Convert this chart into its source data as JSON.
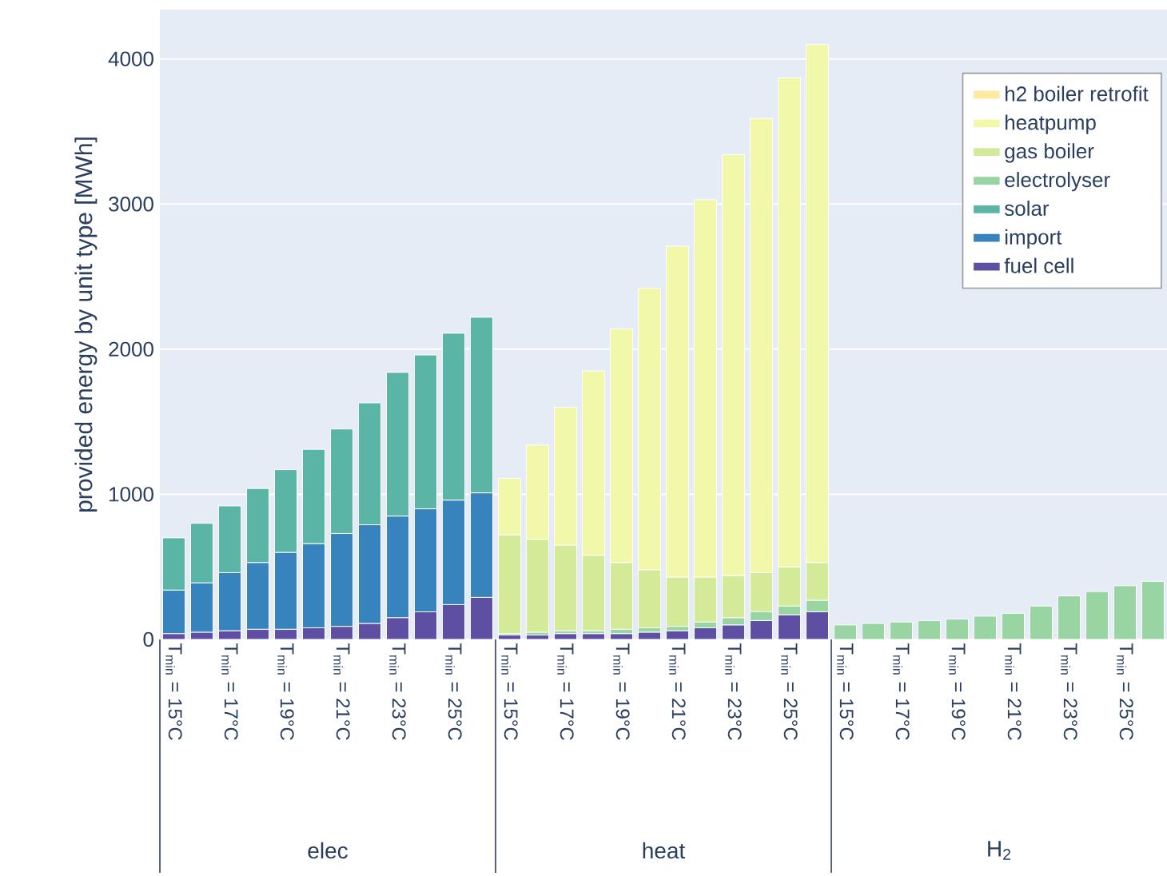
{
  "chart_data": {
    "type": "bar",
    "stacked": true,
    "ylabel": "provided energy by unit type [MWh]",
    "categories": [
      "T$_{min}$ = 15°C",
      null,
      "T$_{min}$ = 17°C",
      null,
      "T$_{min}$ = 19°C",
      null,
      "T$_{min}$ = 21°C",
      null,
      "T$_{min}$ = 23°C",
      null,
      "T$_{min}$ = 25°C",
      null,
      "T$_{min}$ = 15°C",
      null,
      "T$_{min}$ = 17°C",
      null,
      "T$_{min}$ = 19°C",
      null,
      "T$_{min}$ = 21°C",
      null,
      "T$_{min}$ = 23°C",
      null,
      "T$_{min}$ = 25°C",
      null,
      "T$_{min}$ = 15°C",
      null,
      "T$_{min}$ = 17°C",
      null,
      "T$_{min}$ = 19°C",
      null,
      "T$_{min}$ = 21°C",
      null,
      "T$_{min}$ = 23°C",
      null,
      "T$_{min}$ = 25°C",
      null
    ],
    "series": [
      {
        "name": "fuel cell",
        "color": "#5e4fa2",
        "values": [
          40,
          50,
          60,
          70,
          70,
          80,
          90,
          110,
          150,
          190,
          240,
          290,
          30,
          30,
          40,
          40,
          40,
          50,
          60,
          80,
          100,
          130,
          170,
          190,
          null,
          null,
          null,
          null,
          null,
          null,
          null,
          null,
          null,
          null,
          null,
          null
        ]
      },
      {
        "name": "import",
        "color": "#3783be",
        "values": [
          300,
          340,
          400,
          460,
          530,
          580,
          640,
          680,
          700,
          710,
          720,
          720,
          null,
          null,
          null,
          null,
          null,
          null,
          null,
          null,
          null,
          null,
          null,
          null,
          null,
          null,
          null,
          null,
          null,
          null,
          null,
          null,
          null,
          null,
          null,
          null
        ]
      },
      {
        "name": "solar",
        "color": "#5bb5a7",
        "values": [
          360,
          410,
          460,
          510,
          570,
          650,
          720,
          840,
          990,
          1060,
          1150,
          1210,
          null,
          null,
          null,
          null,
          null,
          null,
          null,
          null,
          null,
          null,
          null,
          null,
          null,
          null,
          null,
          null,
          null,
          null,
          null,
          null,
          null,
          null,
          null,
          null
        ]
      },
      {
        "name": "electrolyser",
        "color": "#99d5a2",
        "values": [
          null,
          null,
          null,
          null,
          null,
          null,
          null,
          null,
          null,
          null,
          null,
          null,
          10,
          20,
          20,
          20,
          30,
          30,
          30,
          40,
          50,
          60,
          60,
          80,
          100,
          110,
          120,
          130,
          140,
          160,
          180,
          230,
          300,
          330,
          370,
          400
        ]
      },
      {
        "name": "gas boiler",
        "color": "#d3eb98",
        "values": [
          null,
          null,
          null,
          null,
          null,
          null,
          null,
          null,
          null,
          null,
          null,
          null,
          680,
          640,
          590,
          520,
          460,
          400,
          340,
          310,
          290,
          270,
          270,
          260,
          null,
          null,
          null,
          null,
          null,
          null,
          null,
          null,
          null,
          null,
          null,
          null
        ]
      },
      {
        "name": "heatpump",
        "color": "#f2f8aa",
        "values": [
          null,
          null,
          null,
          null,
          null,
          null,
          null,
          null,
          null,
          null,
          null,
          null,
          390,
          650,
          950,
          1270,
          1610,
          1940,
          2280,
          2600,
          2900,
          3130,
          3370,
          3570,
          null,
          null,
          null,
          null,
          null,
          null,
          null,
          null,
          null,
          null,
          null,
          null
        ]
      },
      {
        "name": "h2 boiler retrofit",
        "color": "#fde9a2",
        "values": [
          null,
          null,
          null,
          null,
          null,
          null,
          null,
          null,
          null,
          null,
          null,
          null,
          null,
          null,
          null,
          null,
          null,
          null,
          null,
          null,
          null,
          null,
          null,
          null,
          null,
          null,
          null,
          null,
          null,
          null,
          null,
          null,
          null,
          null,
          null,
          null
        ]
      }
    ],
    "ylim": [
      0,
      4340
    ],
    "yticks": [
      0,
      1000,
      2000,
      3000,
      4000
    ],
    "grid": "y",
    "legend": "top right",
    "annotations": [
      "elec",
      "heat",
      "H$_{2}$"
    ]
  }
}
